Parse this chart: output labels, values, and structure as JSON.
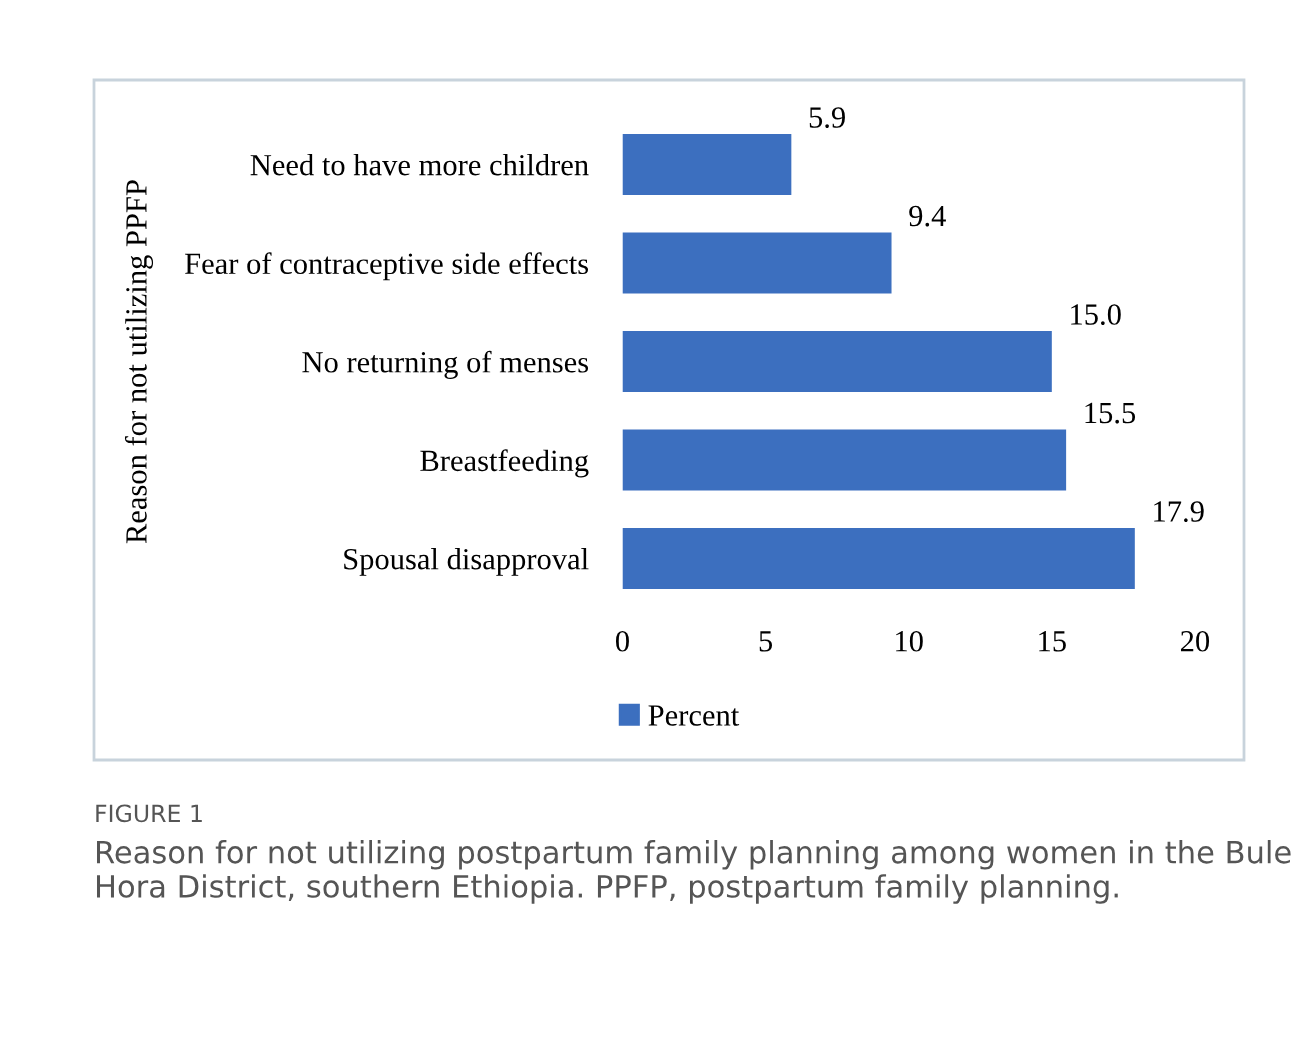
{
  "chart_data": {
    "type": "bar",
    "orientation": "horizontal",
    "ylabel": "Reason for not utilizing PPFP",
    "categories": [
      "Need to have more children",
      "Fear of contraceptive side effects",
      "No returning of menses",
      "Breastfeeding",
      "Spousal disapproval"
    ],
    "series": [
      {
        "name": "Percent",
        "color": "#3c6fbf",
        "values": [
          5.9,
          9.4,
          15.0,
          15.5,
          17.9
        ],
        "value_labels": [
          "5.9",
          "9.4",
          "15.0",
          "15.5",
          "17.9"
        ]
      }
    ],
    "xlim": [
      0,
      20
    ],
    "xticks": [
      0,
      5,
      10,
      15,
      20
    ],
    "grid": false,
    "legend": "bottom",
    "annotations": [
      "FIGURE 1",
      "Reason for not utilizing postpartum family planning among women in the Bule Hora District, southern Ethiopia. PPFP, postpartum family planning."
    ]
  }
}
